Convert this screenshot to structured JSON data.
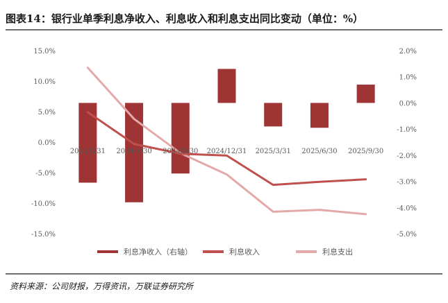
{
  "page": {
    "title": "图表14：银行业单季利息净收入、利息收入和利息支出同比变动（单位：%）",
    "source": "资料来源：公司财报，万得资讯，万联证券研究所"
  },
  "chart_data": {
    "type": "bar",
    "categories": [
      "2024/3/31",
      "2024/6/30",
      "2024/9/30",
      "2024/12/31",
      "2025/3/31",
      "2025/6/30",
      "2025/9/30"
    ],
    "series": [
      {
        "name": "利息净收入（右轴）",
        "kind": "bar",
        "axis": "right",
        "color": "#9e3434",
        "values": [
          -3.05,
          -3.8,
          -2.7,
          1.3,
          -0.9,
          -0.95,
          0.7
        ]
      },
      {
        "name": "利息收入",
        "kind": "line",
        "axis": "left",
        "color": "#c0504d",
        "values": [
          4.9,
          -0.3,
          -1.9,
          -2.2,
          -7.0,
          -6.5,
          -6.1
        ]
      },
      {
        "name": "利息支出",
        "kind": "line",
        "axis": "left",
        "color": "#e3a9a9",
        "values": [
          12.2,
          3.8,
          -1.8,
          -5.3,
          -11.4,
          -11.1,
          -11.8
        ]
      }
    ],
    "y_left": {
      "min": -15,
      "max": 15,
      "step": 5,
      "ticks": [
        "15.0%",
        "10.0%",
        "5.0%",
        "0.0%",
        "-5.0%",
        "-10.0%",
        "-15.0%"
      ]
    },
    "y_right": {
      "min": -5,
      "max": 2,
      "step": 1,
      "ticks": [
        "2.0%",
        "1.0%",
        "0.0%",
        "-1.0%",
        "-2.0%",
        "-3.0%",
        "-4.0%",
        "-5.0%"
      ]
    },
    "legend": {
      "position": "bottom"
    },
    "grid": false
  }
}
